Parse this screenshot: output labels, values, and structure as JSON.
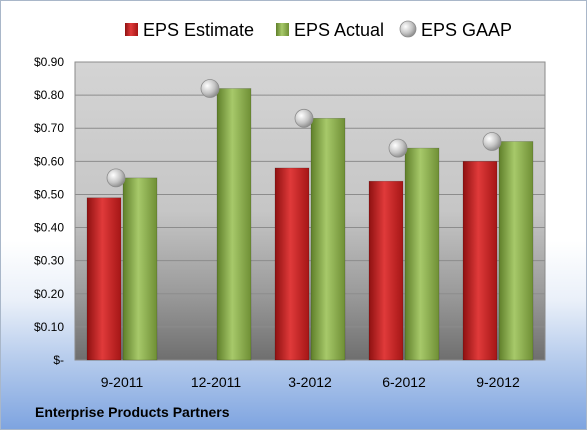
{
  "footer": {
    "company": "Enterprise Products Partners"
  },
  "colors": {
    "estimate": "#c81e1e",
    "actual": "#8db34a",
    "gaap": "#c9c9c9"
  },
  "chart_data": {
    "type": "bar",
    "categories": [
      "9-2011",
      "12-2011",
      "3-2012",
      "6-2012",
      "9-2012"
    ],
    "series": [
      {
        "name": "EPS Estimate",
        "kind": "bar",
        "values": [
          0.49,
          null,
          0.58,
          0.54,
          0.6
        ]
      },
      {
        "name": "EPS Actual",
        "kind": "bar",
        "values": [
          0.55,
          0.82,
          0.73,
          0.64,
          0.66
        ]
      },
      {
        "name": "EPS GAAP",
        "kind": "marker",
        "values": [
          0.55,
          0.82,
          0.73,
          0.64,
          0.66
        ]
      }
    ],
    "y_ticks": [
      "$-",
      "$0.10",
      "$0.20",
      "$0.30",
      "$0.40",
      "$0.50",
      "$0.60",
      "$0.70",
      "$0.80",
      "$0.90"
    ],
    "ylim": [
      0,
      0.9
    ],
    "grid": true,
    "legend_position": "top"
  }
}
